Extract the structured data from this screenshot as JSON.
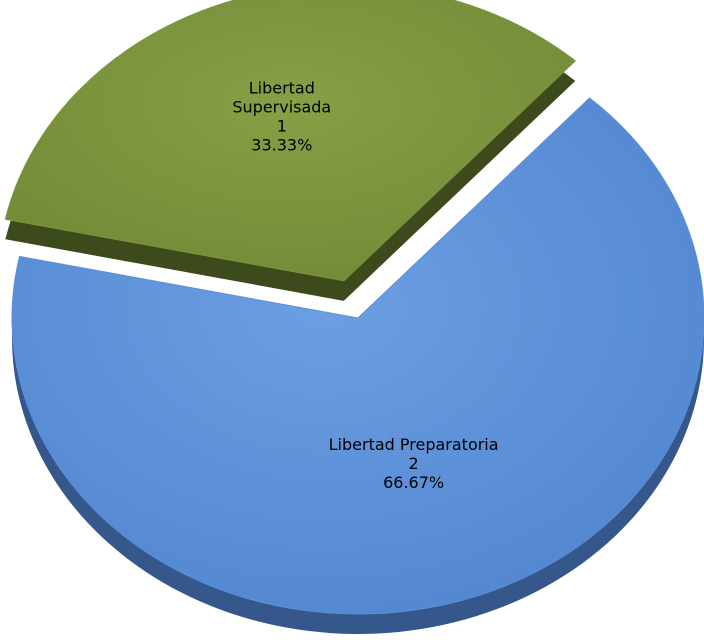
{
  "chart_data": {
    "type": "pie",
    "style": "3d-exploded",
    "title": "",
    "slices": [
      {
        "category": "Libertad Preparatoria",
        "label_lines": [
          "Libertad Preparatoria"
        ],
        "value": 2,
        "percent": "66.67%",
        "color": "#5b8fd6",
        "shade": "#35578c",
        "exploded": false
      },
      {
        "category": "Libertad Supervisada",
        "label_lines": [
          "Libertad",
          "Supervisada"
        ],
        "value": 1,
        "percent": "33.33%",
        "color": "#7d953e",
        "shade": "#3d4a1c",
        "exploded": true
      }
    ]
  }
}
